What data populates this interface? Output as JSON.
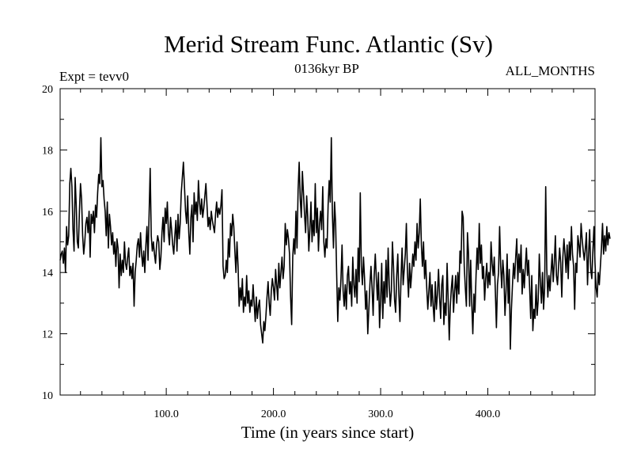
{
  "chart_data": {
    "type": "line",
    "title": "Merid Stream Func. Atlantic (Sv)",
    "subtitle_left": "Expt = tevv0",
    "subtitle_center": "0136kyr BP",
    "subtitle_right": "ALL_MONTHS",
    "xlabel": "Time (in years since start)",
    "ylabel": "",
    "xlim": [
      1,
      500
    ],
    "ylim": [
      10,
      20
    ],
    "x_ticks": [
      100,
      200,
      300,
      400
    ],
    "x_tick_labels": [
      "100.0",
      "200.0",
      "300.0",
      "400.0"
    ],
    "y_ticks": [
      10,
      12,
      14,
      16,
      18,
      20
    ],
    "y_tick_labels": [
      "10",
      "12",
      "14",
      "16",
      "18",
      "20"
    ],
    "grid": false,
    "series": [
      {
        "color": "#000000",
        "x_start": 1,
        "x_step": 1,
        "values": [
          14.4,
          14.6,
          14.7,
          14.3,
          14.8,
          14.0,
          15.5,
          14.9,
          15.2,
          16.9,
          17.4,
          16.8,
          15.4,
          14.7,
          17.1,
          16.2,
          15.0,
          14.8,
          16.0,
          16.9,
          16.4,
          15.2,
          14.6,
          15.0,
          15.6,
          15.8,
          15.3,
          16.0,
          14.5,
          15.9,
          15.6,
          16.0,
          15.3,
          16.2,
          15.8,
          16.6,
          17.2,
          16.9,
          18.4,
          16.8,
          17.0,
          16.4,
          16.0,
          15.2,
          16.3,
          14.8,
          15.9,
          15.5,
          14.9,
          15.3,
          14.6,
          15.0,
          14.2,
          15.1,
          14.8,
          13.5,
          14.6,
          13.9,
          14.4,
          14.0,
          15.0,
          14.3,
          14.1,
          14.5,
          14.8,
          13.9,
          14.2,
          13.8,
          14.3,
          12.9,
          14.0,
          14.4,
          14.9,
          15.1,
          14.5,
          15.3,
          14.6,
          14.2,
          14.7,
          14.0,
          14.9,
          15.5,
          14.4,
          15.9,
          17.4,
          15.2,
          14.7,
          15.0,
          14.6,
          14.3,
          14.9,
          15.2,
          15.0,
          14.1,
          14.5,
          15.3,
          15.8,
          15.0,
          16.1,
          15.6,
          16.3,
          15.3,
          14.9,
          15.8,
          15.4,
          14.9,
          14.6,
          15.2,
          15.7,
          14.7,
          15.9,
          15.1,
          15.6,
          16.6,
          17.1,
          17.6,
          16.8,
          16.0,
          15.6,
          16.5,
          15.3,
          14.6,
          15.8,
          16.2,
          15.0,
          16.6,
          15.9,
          16.3,
          15.7,
          17.0,
          16.3,
          15.9,
          16.4,
          15.8,
          16.1,
          16.5,
          16.9,
          16.2,
          15.5,
          15.8,
          15.4,
          16.0,
          15.7,
          15.5,
          15.3,
          15.9,
          16.3,
          15.8,
          16.1,
          15.9,
          16.2,
          16.7,
          14.2,
          13.8,
          13.9,
          14.4,
          14.0,
          15.1,
          14.5,
          15.6,
          15.2,
          15.9,
          15.5,
          14.7,
          14.0,
          15.0,
          14.2,
          12.9,
          13.5,
          13.1,
          13.8,
          12.7,
          13.2,
          12.9,
          13.9,
          13.0,
          13.4,
          12.7,
          13.1,
          12.9,
          13.6,
          13.0,
          12.4,
          13.2,
          12.5,
          12.9,
          13.1,
          12.3,
          12.0,
          11.7,
          12.4,
          12.1,
          12.6,
          13.2,
          13.7,
          13.0,
          12.6,
          13.4,
          13.8,
          13.5,
          13.1,
          14.1,
          13.6,
          13.1,
          14.3,
          13.5,
          14.0,
          14.5,
          13.8,
          14.2,
          15.6,
          14.9,
          15.4,
          15.1,
          14.6,
          13.2,
          12.3,
          14.5,
          15.1,
          14.6,
          16.0,
          14.8,
          16.7,
          17.6,
          16.4,
          15.8,
          17.3,
          16.6,
          15.9,
          15.3,
          16.5,
          15.8,
          14.7,
          15.4,
          16.3,
          15.0,
          15.7,
          15.2,
          16.9,
          15.3,
          16.1,
          14.7,
          15.6,
          16.0,
          15.4,
          16.8,
          15.0,
          14.5,
          15.1,
          14.8,
          16.2,
          17.0,
          16.3,
          18.4,
          15.9,
          14.8,
          16.3,
          15.6,
          13.9,
          12.4,
          13.5,
          13.1,
          13.8,
          14.9,
          13.4,
          12.9,
          13.6,
          12.8,
          13.9,
          14.2,
          13.3,
          13.7,
          12.9,
          14.5,
          13.6,
          13.2,
          14.1,
          13.0,
          14.8,
          13.7,
          16.6,
          14.2,
          13.6,
          14.5,
          13.8,
          12.8,
          13.4,
          12.0,
          12.8,
          13.6,
          14.2,
          13.5,
          12.6,
          13.9,
          14.6,
          13.8,
          13.1,
          14.0,
          12.2,
          13.1,
          14.3,
          12.5,
          13.7,
          13.0,
          14.4,
          13.2,
          14.8,
          13.6,
          12.9,
          13.4,
          15.0,
          14.2,
          13.1,
          12.7,
          13.9,
          14.6,
          13.3,
          12.4,
          13.8,
          14.8,
          13.6,
          14.1,
          14.6,
          15.6,
          14.0,
          13.2,
          14.3,
          13.5,
          14.0,
          14.6,
          14.2,
          15.0,
          14.4,
          15.6,
          14.8,
          15.3,
          16.4,
          14.9,
          14.2,
          15.0,
          13.8,
          14.4,
          13.5,
          12.8,
          13.4,
          14.0,
          12.9,
          13.6,
          12.9,
          12.4,
          13.7,
          12.8,
          13.3,
          14.1,
          13.2,
          12.5,
          13.6,
          13.9,
          12.3,
          13.0,
          12.6,
          14.3,
          13.1,
          11.8,
          12.9,
          13.5,
          13.9,
          12.7,
          13.4,
          13.9,
          13.0,
          14.0,
          13.3,
          14.7,
          14.3,
          16.0,
          15.8,
          14.2,
          13.5,
          12.9,
          15.3,
          14.6,
          12.9,
          14.4,
          13.0,
          12.0,
          13.3,
          12.7,
          13.9,
          14.8,
          14.1,
          15.6,
          14.3,
          14.9,
          13.8,
          14.2,
          13.1,
          13.8,
          14.3,
          13.5,
          14.0,
          13.6,
          15.0,
          14.3,
          13.9,
          14.5,
          13.4,
          12.2,
          13.6,
          14.0,
          15.5,
          14.2,
          13.5,
          14.4,
          13.9,
          12.6,
          13.4,
          14.6,
          13.0,
          14.1,
          11.5,
          12.8,
          13.6,
          14.3,
          13.8,
          14.5,
          15.1,
          13.7,
          14.6,
          14.0,
          14.9,
          13.3,
          14.1,
          13.5,
          14.2,
          14.8,
          13.9,
          14.4,
          13.5,
          12.5,
          13.9,
          12.1,
          12.8,
          12.5,
          13.6,
          12.6,
          13.1,
          14.6,
          13.7,
          13.0,
          14.0,
          12.8,
          13.5,
          16.8,
          14.1,
          13.2,
          13.9,
          13.4,
          14.0,
          14.6,
          13.7,
          14.3,
          15.2,
          13.9,
          13.6,
          14.2,
          14.8,
          14.3,
          13.2,
          14.5,
          15.1,
          14.6,
          14.0,
          14.9,
          13.8,
          15.0,
          14.4,
          15.5,
          14.6,
          14.2,
          12.8,
          14.3,
          14.0,
          15.2,
          14.9,
          14.5,
          15.6,
          15.1,
          14.7,
          14.4,
          14.8,
          15.3,
          13.6,
          14.6,
          15.4,
          14.1,
          13.8,
          14.7,
          15.5,
          14.3,
          13.5,
          13.2,
          14.0,
          13.6,
          14.2,
          14.8,
          15.6,
          14.6,
          15.2,
          14.7,
          15.5,
          14.9,
          15.3,
          15.1
        ]
      }
    ]
  }
}
